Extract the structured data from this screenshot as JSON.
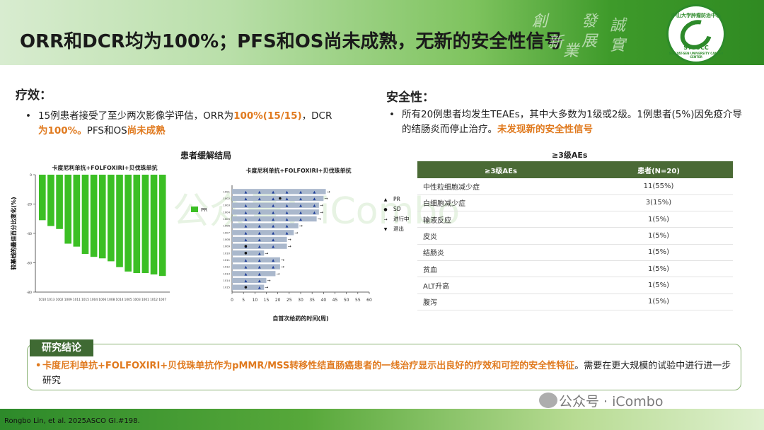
{
  "header": {
    "title": "ORR和DCR均为100%；PFS和OS尚未成熟，无新的安全性信号",
    "calligraphy": [
      "創",
      "新",
      "業",
      "發",
      "展",
      "誠",
      "實"
    ],
    "logo_text_top": "中山大学肿瘤防治中心",
    "logo_text_mid": "SYSUCC",
    "logo_text_bottom": "SUN YAT-SEN UNIVERSITY CANCER CENTER"
  },
  "efficacy": {
    "title": "疗效：",
    "bullet_prefix": "15例患者接受了至少两次影像学评估，ORR为",
    "orr_hl": "100%(15/15)",
    "mid": "，DCR",
    "dcr_hl": "为100%。",
    "pfs_text": "PFS和OS",
    "pfs_hl": "尚未成熟"
  },
  "safety": {
    "title": "安全性：",
    "bullet_text": "所有20例患者均发生TEAEs，其中大多数为1级或2级。1例患者(5%)因免疫介导的结肠炎而停止治疗。",
    "bullet_hl": "未发现新的安全性信号"
  },
  "chart_section_title": "患者缓解结局",
  "chart_data": [
    {
      "type": "bar",
      "title": "卡度尼利单抗+FOLFOXIRI+贝伐珠单抗",
      "ylabel": "较基线的最佳百分比变化(%)",
      "ylim": [
        -80,
        0
      ],
      "yticks": [
        0,
        -20,
        -40,
        -60,
        -80
      ],
      "legend": [
        "PR"
      ],
      "categories": [
        "1010",
        "1013",
        "1002",
        "1009",
        "1011",
        "1015",
        "1004",
        "1006",
        "1008",
        "1014",
        "1005",
        "1003",
        "1001",
        "1012",
        "1007"
      ],
      "values": [
        -31,
        -35,
        -37,
        -47,
        -49,
        -54,
        -56,
        -57,
        -59,
        -63,
        -66,
        -67,
        -67,
        -68,
        -69
      ],
      "color": "#3bbf24"
    },
    {
      "type": "swimmer",
      "title": "卡度尼利单抗+FOLFOXIRI+贝伐珠单抗",
      "xlabel": "自首次给药的时间(周)",
      "xlim": [
        0,
        60
      ],
      "xticks": [
        0,
        5,
        10,
        15,
        20,
        25,
        30,
        35,
        40,
        45,
        50,
        55,
        60
      ],
      "legend": [
        "PR",
        "SD",
        "进行中",
        "退出"
      ],
      "patients": [
        "1001",
        "1002",
        "1003",
        "1004",
        "1005",
        "1006",
        "1007",
        "1008",
        "1009",
        "1010",
        "1011",
        "1012",
        "1013",
        "1014",
        "1015"
      ],
      "durations": [
        41,
        40,
        38,
        38,
        37,
        29,
        27,
        24,
        24,
        14,
        21,
        21,
        19,
        15,
        14
      ],
      "pr_weeks": [
        [
          6,
          12,
          18,
          24,
          30,
          36
        ],
        [
          6,
          12,
          18,
          24,
          30,
          36
        ],
        [
          6,
          12,
          18,
          24,
          30,
          36
        ],
        [
          6,
          12,
          18,
          24,
          30,
          36
        ],
        [
          6,
          12,
          18,
          24,
          30
        ],
        [
          6,
          12,
          18,
          24
        ],
        [
          6,
          12,
          18,
          24
        ],
        [
          6,
          12,
          18
        ],
        [
          6,
          12,
          18
        ],
        [
          12
        ],
        [
          6,
          12,
          18
        ],
        [
          6,
          12,
          18
        ],
        [
          6,
          12
        ],
        [
          6,
          12
        ],
        [
          12
        ]
      ],
      "sd_weeks": [
        [],
        [
          21
        ],
        [],
        [],
        [],
        [],
        [],
        [],
        [
          6
        ],
        [
          6
        ],
        [],
        [],
        [],
        [],
        [
          6
        ]
      ],
      "ongoing": [
        true,
        true,
        true,
        true,
        true,
        true,
        true,
        true,
        true,
        true,
        true,
        true,
        true,
        true,
        true
      ]
    }
  ],
  "ae_table": {
    "title": "≥3级AEs",
    "headers": [
      "≥3级AEs",
      "患者(N=20)"
    ],
    "rows": [
      [
        "中性粒细胞减少症",
        "11(55%)"
      ],
      [
        "白细胞减少症",
        "3(15%)"
      ],
      [
        "输液反应",
        "1(5%)"
      ],
      [
        "皮炎",
        "1(5%)"
      ],
      [
        "结肠炎",
        "1(5%)"
      ],
      [
        "贫血",
        "1(5%)"
      ],
      [
        "ALT升高",
        "1(5%)"
      ],
      [
        "腹泻",
        "1(5%)"
      ]
    ]
  },
  "conclusion": {
    "tag": "研究结论",
    "bullet_hl": "卡度尼利单抗+FOLFOXIRI+贝伐珠单抗作为pMMR/MSS转移性结直肠癌患者的一线治疗显示出良好的疗效和可控的安全性特征",
    "bullet_text": "。需要在更大规模的试验中进行进一步研究"
  },
  "footer": {
    "reference": "Rongbo Lin, et al. 2025ASCO GI.#198.",
    "watermark": "公众号 · iCombo",
    "bg_watermark": "公众号：iCombo"
  }
}
